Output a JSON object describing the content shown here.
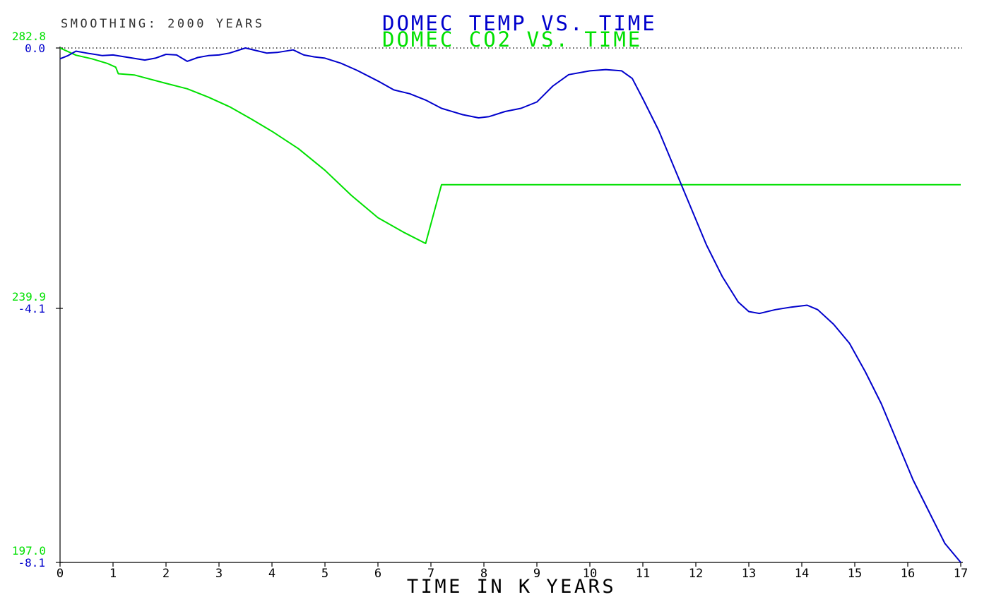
{
  "colors": {
    "temp": "#0000cc",
    "co2": "#00e000",
    "axis": "#000000",
    "smoothing": "#333333"
  },
  "smoothing_label": "SMOOTHING: 2000 YEARS",
  "chart_data": {
    "type": "line",
    "title_lines": [
      "DOMEC TEMP VS. TIME",
      "DOMEC  CO2 VS. TIME"
    ],
    "xlabel": "TIME IN K YEARS",
    "x_ticks": [
      "0",
      "1",
      "2",
      "3",
      "4",
      "5",
      "6",
      "7",
      "8",
      "9",
      "10",
      "11",
      "12",
      "13",
      "14",
      "15",
      "16",
      "17"
    ],
    "xlim": [
      0,
      17
    ],
    "temp_axis": {
      "ylim": [
        -8.1,
        0.0
      ],
      "ticks": [
        "0.0",
        "-4.1",
        "-8.1"
      ]
    },
    "co2_axis": {
      "ylim": [
        197.0,
        282.8
      ],
      "ticks": [
        "282.8",
        "239.9",
        "197.0"
      ]
    },
    "reference_line": {
      "style": "dotted",
      "value": 0.0
    },
    "series": [
      {
        "name": "DOMEC TEMP VS. TIME",
        "axis": "temp_axis",
        "x": [
          0,
          0.15,
          0.3,
          0.5,
          0.8,
          1.0,
          1.3,
          1.6,
          1.8,
          2.0,
          2.2,
          2.4,
          2.6,
          2.8,
          3.0,
          3.2,
          3.5,
          3.7,
          3.9,
          4.1,
          4.4,
          4.6,
          4.8,
          5.0,
          5.3,
          5.6,
          6.0,
          6.3,
          6.6,
          6.9,
          7.2,
          7.6,
          7.9,
          8.1,
          8.4,
          8.7,
          9.0,
          9.3,
          9.6,
          10.0,
          10.3,
          10.6,
          10.8,
          11.0,
          11.3,
          11.6,
          11.9,
          12.2,
          12.5,
          12.8,
          13.0,
          13.2,
          13.5,
          13.8,
          14.1,
          14.3,
          14.6,
          14.9,
          15.2,
          15.5,
          15.8,
          16.1,
          16.4,
          16.7,
          17.0
        ],
        "values": [
          -0.17,
          -0.12,
          -0.05,
          -0.08,
          -0.12,
          -0.11,
          -0.15,
          -0.19,
          -0.16,
          -0.1,
          -0.11,
          -0.21,
          -0.15,
          -0.12,
          -0.11,
          -0.08,
          0.0,
          -0.04,
          -0.08,
          -0.07,
          -0.03,
          -0.11,
          -0.14,
          -0.16,
          -0.24,
          -0.35,
          -0.52,
          -0.66,
          -0.72,
          -0.82,
          -0.95,
          -1.05,
          -1.1,
          -1.08,
          -1.0,
          -0.95,
          -0.85,
          -0.6,
          -0.42,
          -0.36,
          -0.34,
          -0.36,
          -0.48,
          -0.8,
          -1.3,
          -1.9,
          -2.5,
          -3.1,
          -3.6,
          -4.0,
          -4.15,
          -4.18,
          -4.12,
          -4.08,
          -4.05,
          -4.12,
          -4.35,
          -4.65,
          -5.1,
          -5.6,
          -6.2,
          -6.8,
          -7.3,
          -7.8,
          -8.1
        ]
      },
      {
        "name": "DOMEC  CO2 VS. TIME",
        "axis": "co2_axis",
        "x": [
          0,
          0.3,
          0.6,
          0.9,
          1.05,
          1.1,
          1.4,
          1.7,
          2.0,
          2.4,
          2.8,
          3.2,
          3.6,
          4.0,
          4.5,
          5.0,
          5.5,
          6.0,
          6.5,
          6.9,
          7.2,
          7.6,
          7.9,
          8.3,
          8.7,
          9.1,
          9.5,
          9.8,
          10.2,
          10.5,
          10.8,
          11.1,
          11.4,
          11.8,
          12.2,
          12.5,
          12.8,
          13.2,
          13.6,
          14.0,
          14.4,
          14.8,
          15.2,
          15.6,
          16.0,
          16.4,
          16.8,
          17.0
        ],
        "values": [
          282.8,
          281.6,
          281.0,
          280.2,
          279.6,
          278.5,
          278.3,
          277.6,
          276.9,
          276.0,
          274.6,
          273.0,
          271.0,
          268.9,
          266.0,
          262.4,
          258.2,
          254.5,
          252.0,
          250.2,
          260.0,
          260.0,
          260.0,
          260.0,
          260.0,
          260.0,
          260.0,
          260.0,
          260.0,
          260.0,
          260.0,
          260.0,
          260.0,
          260.0,
          260.0,
          260.0,
          260.0,
          260.0,
          260.0,
          260.0,
          260.0,
          260.0,
          260.0,
          260.0,
          260.0,
          260.0,
          260.0,
          260.0
        ]
      }
    ]
  }
}
